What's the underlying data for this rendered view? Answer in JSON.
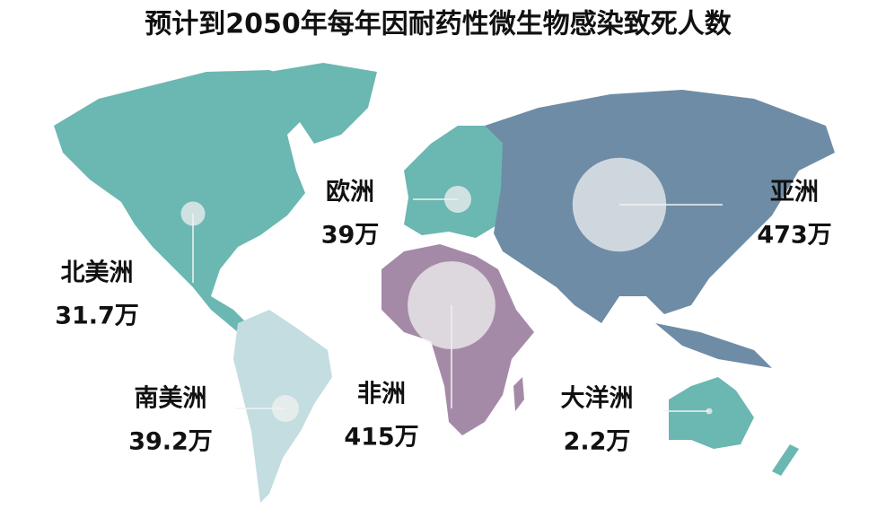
{
  "title": "预计到2050年每年因耐药性微生物感染致死人数",
  "regions": [
    {
      "name": "北美洲",
      "value": 31.7,
      "value_label": "31.7万"
    },
    {
      "name": "欧洲",
      "value": 39,
      "value_label": "39万"
    },
    {
      "name": "亚洲",
      "value": 473,
      "value_label": "473万"
    },
    {
      "name": "非洲",
      "value": 415,
      "value_label": "415万"
    },
    {
      "name": "南美洲",
      "value": 39.2,
      "value_label": "39.2万"
    },
    {
      "name": "大洋洲",
      "value": 2.2,
      "value_label": "2.2万"
    }
  ]
}
